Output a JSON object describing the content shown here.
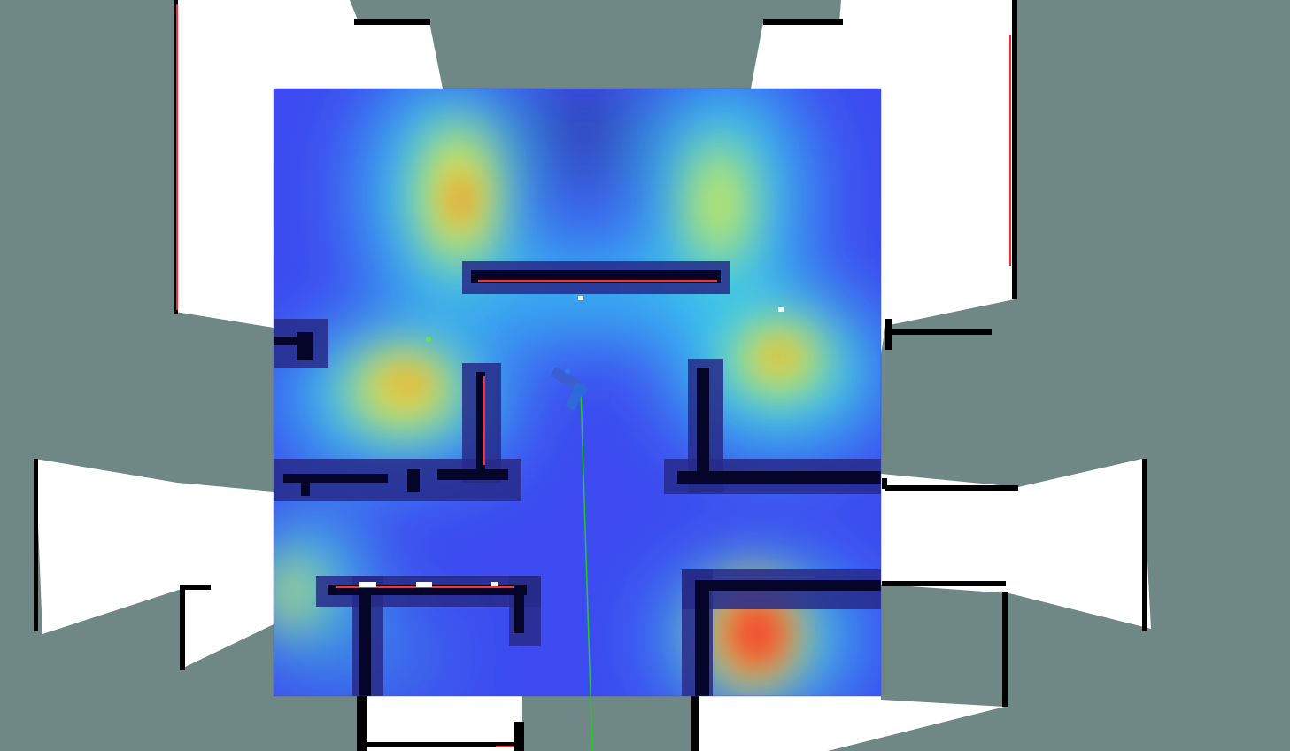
{
  "viewport": {
    "background": "#6f8885",
    "free_space_color": "#ffffff",
    "wall_color": "#000000",
    "scan_point_color": "#ff2a2a",
    "inflation_color": "#1f1f9a"
  },
  "costmap": {
    "colormap": "jet",
    "low_color": "#3a3aff",
    "high_color": "#ff2222"
  },
  "robot": {
    "color": "#2a6bdc",
    "heading_icon": "arrow-icon"
  },
  "path": {
    "color": "#22cc22"
  }
}
